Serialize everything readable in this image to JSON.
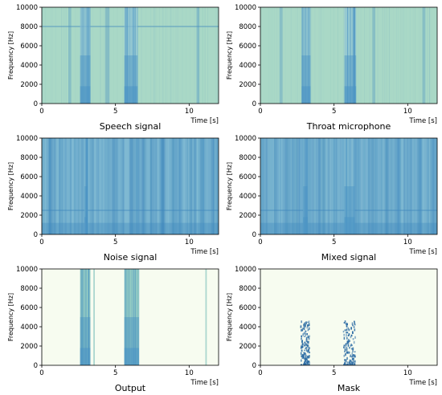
{
  "chart_data": [
    {
      "type": "heatmap",
      "caption": "Speech signal",
      "ylabel": "Frequency [Hz]",
      "xlabel": "Time [s]",
      "xlim": [
        0,
        12
      ],
      "ylim": [
        0,
        10000
      ],
      "xticks": [
        "0",
        "5",
        "10"
      ],
      "xtick_values": [
        0,
        5,
        10
      ],
      "yticks": [
        "0",
        "2000",
        "4000",
        "6000",
        "8000",
        "10000"
      ],
      "ytick_values": [
        0,
        2000,
        4000,
        6000,
        8000,
        10000
      ],
      "background_color": "#a9d8c6",
      "active_segments": [
        [
          2.6,
          3.3
        ],
        [
          5.6,
          6.5
        ]
      ],
      "weak_segments": [
        [
          1.8,
          2.0
        ],
        [
          4.3,
          4.6
        ],
        [
          10.5,
          10.7
        ]
      ],
      "tonal_lines_hz": [
        8000
      ]
    },
    {
      "type": "heatmap",
      "caption": "Throat microphone",
      "ylabel": "Frequency [Hz]",
      "xlabel": "Time [s]",
      "xlim": [
        0,
        12
      ],
      "ylim": [
        0,
        10000
      ],
      "xticks": [
        "0",
        "5",
        "10"
      ],
      "xtick_values": [
        0,
        5,
        10
      ],
      "yticks": [
        "0",
        "2000",
        "4000",
        "6000",
        "8000",
        "10000"
      ],
      "ytick_values": [
        0,
        2000,
        4000,
        6000,
        8000,
        10000
      ],
      "background_color": "#a9d8c6",
      "active_segments": [
        [
          2.8,
          3.4
        ],
        [
          5.7,
          6.5
        ]
      ],
      "weak_segments": [
        [
          1.3,
          1.5
        ],
        [
          7.6,
          7.8
        ],
        [
          11.0,
          11.2
        ]
      ],
      "tonal_lines_hz": []
    },
    {
      "type": "heatmap",
      "caption": "Noise signal",
      "ylabel": "Frequency [Hz]",
      "xlabel": "Time [s]",
      "xlim": [
        0,
        12
      ],
      "ylim": [
        0,
        10000
      ],
      "xticks": [
        "0",
        "5",
        "10"
      ],
      "xtick_values": [
        0,
        5,
        10
      ],
      "yticks": [
        "0",
        "2000",
        "4000",
        "6000",
        "8000",
        "10000"
      ],
      "ytick_values": [
        0,
        2000,
        4000,
        6000,
        8000,
        10000
      ],
      "background_color": "#7fb9d2",
      "active_segments": [
        [
          2.9,
          3.1
        ]
      ],
      "weak_segments": [
        [
          6.4,
          6.6
        ],
        [
          9.3,
          9.5
        ],
        [
          10.8,
          11.0
        ]
      ],
      "tonal_lines_hz": [
        2500
      ]
    },
    {
      "type": "heatmap",
      "caption": "Mixed signal",
      "ylabel": "Frequency [Hz]",
      "xlabel": "Time [s]",
      "xlim": [
        0,
        12
      ],
      "ylim": [
        0,
        10000
      ],
      "xticks": [
        "0",
        "5",
        "10"
      ],
      "xtick_values": [
        0,
        5,
        10
      ],
      "yticks": [
        "0",
        "2000",
        "4000",
        "6000",
        "8000",
        "10000"
      ],
      "ytick_values": [
        0,
        2000,
        4000,
        6000,
        8000,
        10000
      ],
      "background_color": "#7fb9d2",
      "active_segments": [
        [
          2.9,
          3.2
        ],
        [
          5.7,
          6.4
        ]
      ],
      "weak_segments": [
        [
          6.6,
          6.8
        ],
        [
          9.3,
          9.5
        ],
        [
          10.8,
          11.0
        ]
      ],
      "tonal_lines_hz": [
        2500
      ]
    },
    {
      "type": "heatmap",
      "caption": "Output",
      "ylabel": "Frequency [Hz]",
      "xlabel": "Time [s]",
      "xlim": [
        0,
        12
      ],
      "ylim": [
        0,
        10000
      ],
      "xticks": [
        "0",
        "5",
        "10"
      ],
      "xtick_values": [
        0,
        5,
        10
      ],
      "yticks": [
        "0",
        "2000",
        "4000",
        "6000",
        "8000",
        "10000"
      ],
      "ytick_values": [
        0,
        2000,
        4000,
        6000,
        8000,
        10000
      ],
      "background_color": "#f7fcf0",
      "active_segments": [
        [
          2.6,
          3.3
        ],
        [
          5.6,
          6.6
        ]
      ],
      "weak_segments": [
        [
          3.5,
          3.6
        ],
        [
          11.1,
          11.2
        ]
      ],
      "tonal_lines_hz": []
    },
    {
      "type": "heatmap",
      "caption": "Mask",
      "ylabel": "Frequency [Hz]",
      "xlabel": "Time [s]",
      "xlim": [
        0,
        12
      ],
      "ylim": [
        0,
        10000
      ],
      "xticks": [
        "0",
        "5",
        "10"
      ],
      "xtick_values": [
        0,
        5,
        10
      ],
      "yticks": [
        "0",
        "2000",
        "4000",
        "6000",
        "8000",
        "10000"
      ],
      "ytick_values": [
        0,
        2000,
        4000,
        6000,
        8000,
        10000
      ],
      "background_color": "#f7fcf0",
      "active_segments": [
        [
          2.7,
          3.3
        ],
        [
          5.6,
          6.4
        ]
      ],
      "weak_segments": [],
      "tonal_lines_hz": []
    }
  ],
  "colors": {
    "speech_band": "#4a93c4",
    "speech_band_light": "#8fc3d6",
    "noise_streak": "#3d86bd",
    "output_band": "#8cc7c0",
    "mask_mark": "#2a6aa3"
  }
}
